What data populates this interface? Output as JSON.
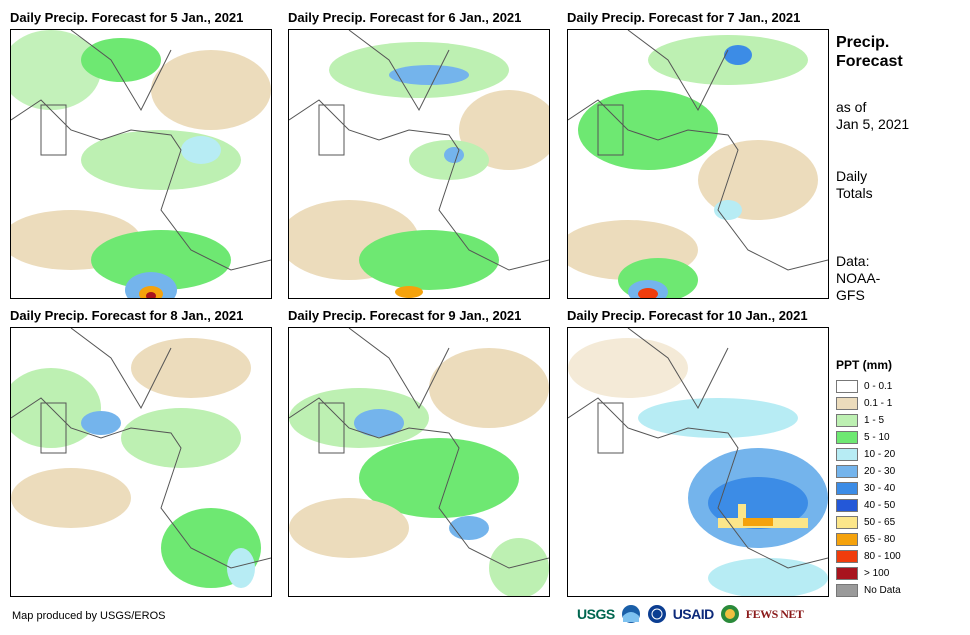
{
  "panels": [
    {
      "title": "Daily Precip. Forecast for 5 Jan., 2021"
    },
    {
      "title": "Daily Precip. Forecast for 6 Jan., 2021"
    },
    {
      "title": "Daily Precip. Forecast for 7 Jan., 2021"
    },
    {
      "title": "Daily Precip. Forecast for 8 Jan., 2021"
    },
    {
      "title": "Daily Precip. Forecast for 9 Jan., 2021"
    },
    {
      "title": "Daily Precip. Forecast for 10 Jan., 2021"
    }
  ],
  "sidebar": {
    "title_line1": "Precip.",
    "title_line2": "Forecast",
    "asof_line1": "as of",
    "asof_line2": "Jan 5, 2021",
    "totals_line1": "Daily",
    "totals_line2": "Totals",
    "data_line1": "Data:",
    "data_line2": "NOAA-",
    "data_line3": "GFS"
  },
  "legend": {
    "title": "PPT (mm)",
    "items": [
      {
        "label": "0 - 0.1",
        "color": "#ffffff"
      },
      {
        "label": "0.1 - 1",
        "color": "#ecdcbc"
      },
      {
        "label": "1 - 5",
        "color": "#bdf0b2"
      },
      {
        "label": "5 - 10",
        "color": "#6ee872"
      },
      {
        "label": "10 - 20",
        "color": "#b7ecf4"
      },
      {
        "label": "20 - 30",
        "color": "#74b4ec"
      },
      {
        "label": "30 - 40",
        "color": "#3c8ce6"
      },
      {
        "label": "40 - 50",
        "color": "#2458d8"
      },
      {
        "label": "50 - 65",
        "color": "#fce68a"
      },
      {
        "label": "65 - 80",
        "color": "#f5a20c"
      },
      {
        "label": "80 - 100",
        "color": "#f03c0c"
      },
      {
        "label": "> 100",
        "color": "#a8141e"
      },
      {
        "label": "No Data",
        "color": "#9a9a9a"
      }
    ]
  },
  "footer": {
    "credit": "Map produced by USGS/EROS"
  },
  "logos": {
    "usgs": "USGS",
    "usaid": "USAID",
    "fewsnet": "FEWS NET"
  }
}
